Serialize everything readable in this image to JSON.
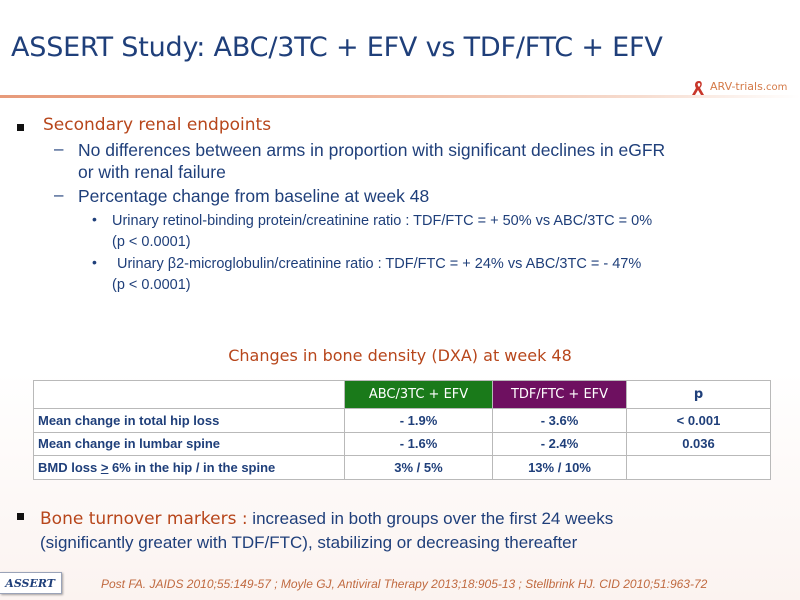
{
  "slide": {
    "title": "ASSERT Study: ABC/3TC + EFV vs TDF/FTC + EFV",
    "logo_text": "ARV-trials",
    "logo_suffix": ".com"
  },
  "bullets": {
    "heading": "Secondary renal endpoints",
    "sub1_line1": "No differences between arms in proportion with significant declines in eGFR",
    "sub1_line2": "or with renal failure",
    "sub2": "Percentage change from baseline at week 48",
    "item1_line1": "Urinary retinol-binding protein/creatinine ratio : TDF/FTC = + 50% vs ABC/3TC = 0%",
    "item1_line2": "(p < 0.0001)",
    "item2_line1": "Urinary β2-microglobulin/creatinine ratio : TDF/FTC = + 24% vs ABC/3TC = - 47%",
    "item2_line2": "(p < 0.0001)"
  },
  "table": {
    "title": "Changes in bone density (DXA) at week 48",
    "headers": [
      "",
      "ABC/3TC + EFV",
      "TDF/FTC + EFV",
      "p"
    ],
    "rows": [
      [
        "Mean change in total hip loss",
        "- 1.9%",
        "- 3.6%",
        "< 0.001"
      ],
      [
        "Mean change in lumbar spine",
        "- 1.6%",
        "- 2.4%",
        "0.036"
      ],
      [
        "BMD loss > 6% in the hip / in the spine",
        "3% / 5%",
        "13% / 10%",
        ""
      ]
    ],
    "row3_label_pre": "BMD loss ",
    "row3_label_ge": ">",
    "row3_label_post": " 6% in the hip / in the spine"
  },
  "bone": {
    "label": "Bone turnover markers :",
    "text_line1": " increased in both groups over the first 24 weeks",
    "text_line2": "(significantly greater with TDF/FTC), stabilizing or decreasing thereafter"
  },
  "footer": {
    "badge": "ASSERT",
    "reference": "Post FA. JAIDS 2010;55:149-57 ; Moyle GJ, Antiviral Therapy 2013;18:905-13 ; Stellbrink HJ. CID 2010;51:963-72"
  },
  "colors": {
    "title_blue": "#1f3f7a",
    "accent_orange": "#b7461b",
    "abc_green": "#1a7a1a",
    "tdf_purple": "#6e1060"
  }
}
